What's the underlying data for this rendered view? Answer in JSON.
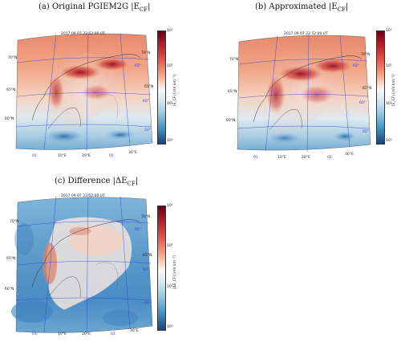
{
  "figure": {
    "captions": {
      "a": "(a) Original PGIEM2G |E",
      "b": "(b) Approximated |E",
      "c": "(c) Difference |ΔE"
    },
    "caption_sub": "CF",
    "caption_close": "|",
    "panels": [
      {
        "timestamp": "2017 09 07 23 52:00 UT",
        "lat_labels_left": [
          "70°N",
          "65°N",
          "60°N"
        ],
        "lat_labels_right": [
          "70°N",
          "65°N"
        ],
        "blue_labels_right": [
          "65°",
          "60°",
          "55°"
        ],
        "lon_labels_bottom": [
          "01",
          "10°E",
          "20°E",
          "02",
          "30°E"
        ]
      },
      {
        "timestamp": "2017 09 07 23 52:00 UT",
        "lat_labels_left": [
          "70°N",
          "65°N",
          "60°N"
        ],
        "lat_labels_right": [
          "70°N",
          "65°N"
        ],
        "blue_labels_right": [
          "65°",
          "60°",
          "55°"
        ],
        "lon_labels_bottom": [
          "01",
          "10°E",
          "20°E",
          "02",
          "30°E"
        ]
      },
      {
        "timestamp": "2017 09 07 23 52:00 UT",
        "lat_labels_left": [
          "70°N",
          "65°N",
          "60°N"
        ],
        "lat_labels_right": [
          "70°N",
          "65°N"
        ],
        "blue_labels_right": [
          "65°",
          "60°",
          "55°"
        ],
        "lon_labels_bottom": [
          "01",
          "10°E",
          "20°E",
          "02",
          "30°E"
        ]
      }
    ],
    "colorbar": {
      "ticks": [
        "10³",
        "10²",
        "10¹",
        "10⁰"
      ],
      "label_a": "|E_CF| [mV km⁻¹]",
      "label_b": "|E_CF| [mV km⁻¹]",
      "label_c": "|ΔE_CF| [mV km⁻¹]"
    },
    "colors": {
      "high": "#b3202c",
      "low": "#18427e",
      "grid": "#2a3bd8"
    }
  }
}
